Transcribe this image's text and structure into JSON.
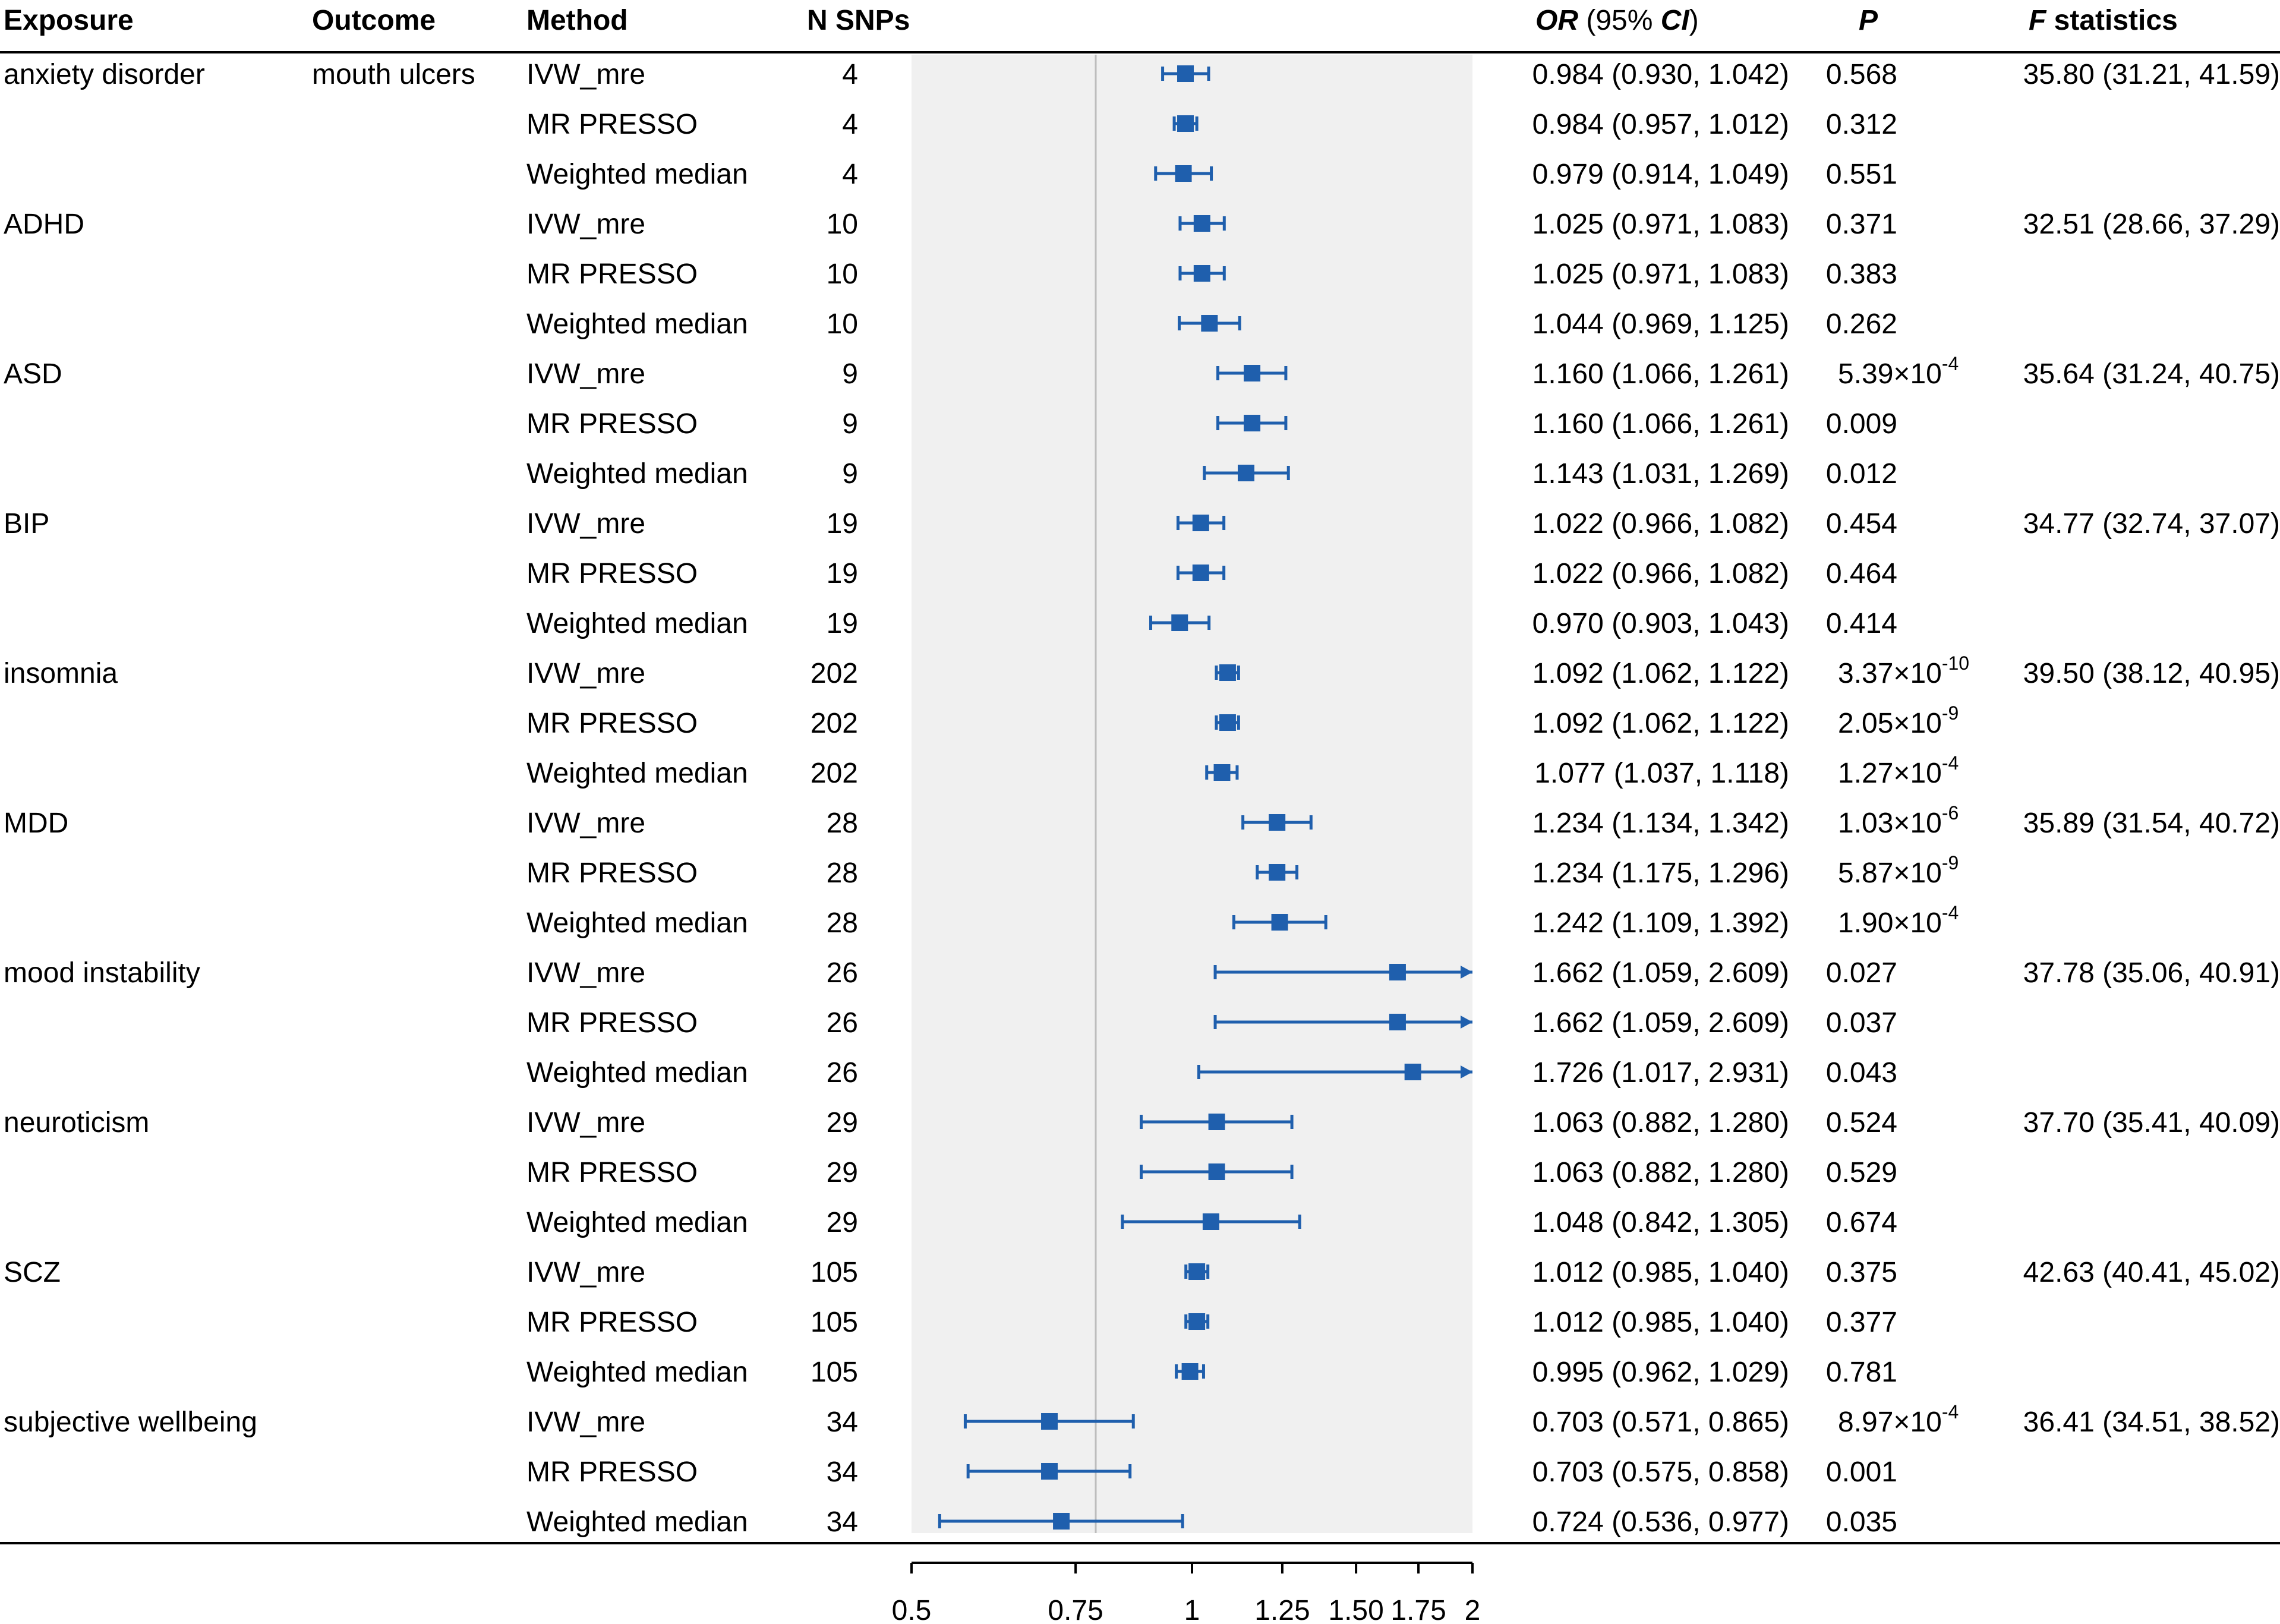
{
  "chart_data": {
    "type": "forest",
    "title": "",
    "xlabel": "",
    "ylabel": "",
    "x_scale": "log",
    "xlim": [
      0.5,
      2
    ],
    "reference_line": 1,
    "x_ticks": [
      0.5,
      0.75,
      1,
      1.25,
      1.5,
      1.75,
      2
    ],
    "x_tick_labels": [
      "0.5",
      "0.75",
      "1",
      "1.25",
      "1.50",
      "1.75",
      "2"
    ],
    "headers": {
      "exposure": "Exposure",
      "outcome": "Outcome",
      "method": "Method",
      "nsnps": "N SNPs",
      "or_ci_or": "OR",
      "or_ci_open": " (95% ",
      "or_ci_ci": "CI",
      "or_ci_close": ")",
      "p": "P",
      "f_f": "F",
      "f_rest": " statistics"
    },
    "colors": {
      "marker": "#1f5fad",
      "shade": "#f0f0f0",
      "refline": "#bdbdbd",
      "axis": "#000000"
    },
    "rows": [
      {
        "exposure": "anxiety disorder",
        "outcome": "mouth ulcers",
        "method": "IVW_mre",
        "nsnps": "4",
        "or": 0.984,
        "lo": 0.93,
        "hi": 1.042,
        "or_text": "0.984 (0.930, 1.042)",
        "p_text": "0.568",
        "p_mant": "",
        "p_exp": "",
        "f_text": "35.80 (31.21, 41.59)"
      },
      {
        "exposure": "",
        "outcome": "",
        "method": "MR PRESSO",
        "nsnps": "4",
        "or": 0.984,
        "lo": 0.957,
        "hi": 1.012,
        "or_text": "0.984 (0.957, 1.012)",
        "p_text": "0.312",
        "p_mant": "",
        "p_exp": "",
        "f_text": ""
      },
      {
        "exposure": "",
        "outcome": "",
        "method": "Weighted median",
        "nsnps": "4",
        "or": 0.979,
        "lo": 0.914,
        "hi": 1.049,
        "or_text": "0.979 (0.914, 1.049)",
        "p_text": "0.551",
        "p_mant": "",
        "p_exp": "",
        "f_text": ""
      },
      {
        "exposure": "ADHD",
        "outcome": "",
        "method": "IVW_mre",
        "nsnps": "10",
        "or": 1.025,
        "lo": 0.971,
        "hi": 1.083,
        "or_text": "1.025 (0.971, 1.083)",
        "p_text": "0.371",
        "p_mant": "",
        "p_exp": "",
        "f_text": "32.51 (28.66, 37.29)"
      },
      {
        "exposure": "",
        "outcome": "",
        "method": "MR PRESSO",
        "nsnps": "10",
        "or": 1.025,
        "lo": 0.971,
        "hi": 1.083,
        "or_text": "1.025 (0.971, 1.083)",
        "p_text": "0.383",
        "p_mant": "",
        "p_exp": "",
        "f_text": ""
      },
      {
        "exposure": "",
        "outcome": "",
        "method": "Weighted median",
        "nsnps": "10",
        "or": 1.044,
        "lo": 0.969,
        "hi": 1.125,
        "or_text": "1.044 (0.969, 1.125)",
        "p_text": "0.262",
        "p_mant": "",
        "p_exp": "",
        "f_text": ""
      },
      {
        "exposure": "ASD",
        "outcome": "",
        "method": "IVW_mre",
        "nsnps": "9",
        "or": 1.16,
        "lo": 1.066,
        "hi": 1.261,
        "or_text": "1.160 (1.066, 1.261)",
        "p_text": "",
        "p_mant": "5.39×10",
        "p_exp": "-4",
        "f_text": "35.64 (31.24, 40.75)"
      },
      {
        "exposure": "",
        "outcome": "",
        "method": "MR PRESSO",
        "nsnps": "9",
        "or": 1.16,
        "lo": 1.066,
        "hi": 1.261,
        "or_text": "1.160 (1.066, 1.261)",
        "p_text": "0.009",
        "p_mant": "",
        "p_exp": "",
        "f_text": ""
      },
      {
        "exposure": "",
        "outcome": "",
        "method": "Weighted median",
        "nsnps": "9",
        "or": 1.143,
        "lo": 1.031,
        "hi": 1.269,
        "or_text": "1.143 (1.031, 1.269)",
        "p_text": "0.012",
        "p_mant": "",
        "p_exp": "",
        "f_text": ""
      },
      {
        "exposure": "BIP",
        "outcome": "",
        "method": "IVW_mre",
        "nsnps": "19",
        "or": 1.022,
        "lo": 0.966,
        "hi": 1.082,
        "or_text": "1.022 (0.966, 1.082)",
        "p_text": "0.454",
        "p_mant": "",
        "p_exp": "",
        "f_text": "34.77 (32.74, 37.07)"
      },
      {
        "exposure": "",
        "outcome": "",
        "method": "MR PRESSO",
        "nsnps": "19",
        "or": 1.022,
        "lo": 0.966,
        "hi": 1.082,
        "or_text": "1.022 (0.966, 1.082)",
        "p_text": "0.464",
        "p_mant": "",
        "p_exp": "",
        "f_text": ""
      },
      {
        "exposure": "",
        "outcome": "",
        "method": "Weighted median",
        "nsnps": "19",
        "or": 0.97,
        "lo": 0.903,
        "hi": 1.043,
        "or_text": "0.970 (0.903, 1.043)",
        "p_text": "0.414",
        "p_mant": "",
        "p_exp": "",
        "f_text": ""
      },
      {
        "exposure": "insomnia",
        "outcome": "",
        "method": "IVW_mre",
        "nsnps": "202",
        "or": 1.092,
        "lo": 1.062,
        "hi": 1.122,
        "or_text": "1.092 (1.062, 1.122)",
        "p_text": "",
        "p_mant": "3.37×10",
        "p_exp": "-10",
        "f_text": "39.50 (38.12, 40.95)"
      },
      {
        "exposure": "",
        "outcome": "",
        "method": "MR PRESSO",
        "nsnps": "202",
        "or": 1.092,
        "lo": 1.062,
        "hi": 1.122,
        "or_text": "1.092 (1.062, 1.122)",
        "p_text": "",
        "p_mant": "2.05×10",
        "p_exp": "-9",
        "f_text": ""
      },
      {
        "exposure": "",
        "outcome": "",
        "method": "Weighted median",
        "nsnps": "202",
        "or": 1.077,
        "lo": 1.037,
        "hi": 1.118,
        "or_text": "1.077 (1.037, 1.118)",
        "p_text": "",
        "p_mant": "1.27×10",
        "p_exp": "-4",
        "f_text": ""
      },
      {
        "exposure": "MDD",
        "outcome": "",
        "method": "IVW_mre",
        "nsnps": "28",
        "or": 1.234,
        "lo": 1.134,
        "hi": 1.342,
        "or_text": "1.234 (1.134, 1.342)",
        "p_text": "",
        "p_mant": "1.03×10",
        "p_exp": "-6",
        "f_text": "35.89 (31.54, 40.72)"
      },
      {
        "exposure": "",
        "outcome": "",
        "method": "MR PRESSO",
        "nsnps": "28",
        "or": 1.234,
        "lo": 1.175,
        "hi": 1.296,
        "or_text": "1.234 (1.175, 1.296)",
        "p_text": "",
        "p_mant": "5.87×10",
        "p_exp": "-9",
        "f_text": ""
      },
      {
        "exposure": "",
        "outcome": "",
        "method": "Weighted median",
        "nsnps": "28",
        "or": 1.242,
        "lo": 1.109,
        "hi": 1.392,
        "or_text": "1.242 (1.109, 1.392)",
        "p_text": "",
        "p_mant": "1.90×10",
        "p_exp": "-4",
        "f_text": ""
      },
      {
        "exposure": "mood instability",
        "outcome": "",
        "method": "IVW_mre",
        "nsnps": "26",
        "or": 1.662,
        "lo": 1.059,
        "hi": 2.609,
        "or_text": "1.662 (1.059, 2.609)",
        "p_text": "0.027",
        "p_mant": "",
        "p_exp": "",
        "f_text": "37.78 (35.06, 40.91)"
      },
      {
        "exposure": "",
        "outcome": "",
        "method": "MR PRESSO",
        "nsnps": "26",
        "or": 1.662,
        "lo": 1.059,
        "hi": 2.609,
        "or_text": "1.662 (1.059, 2.609)",
        "p_text": "0.037",
        "p_mant": "",
        "p_exp": "",
        "f_text": ""
      },
      {
        "exposure": "",
        "outcome": "",
        "method": "Weighted median",
        "nsnps": "26",
        "or": 1.726,
        "lo": 1.017,
        "hi": 2.931,
        "or_text": "1.726 (1.017, 2.931)",
        "p_text": "0.043",
        "p_mant": "",
        "p_exp": "",
        "f_text": ""
      },
      {
        "exposure": "neuroticism",
        "outcome": "",
        "method": "IVW_mre",
        "nsnps": "29",
        "or": 1.063,
        "lo": 0.882,
        "hi": 1.28,
        "or_text": "1.063 (0.882, 1.280)",
        "p_text": "0.524",
        "p_mant": "",
        "p_exp": "",
        "f_text": "37.70 (35.41, 40.09)"
      },
      {
        "exposure": "",
        "outcome": "",
        "method": "MR PRESSO",
        "nsnps": "29",
        "or": 1.063,
        "lo": 0.882,
        "hi": 1.28,
        "or_text": "1.063 (0.882, 1.280)",
        "p_text": "0.529",
        "p_mant": "",
        "p_exp": "",
        "f_text": ""
      },
      {
        "exposure": "",
        "outcome": "",
        "method": "Weighted median",
        "nsnps": "29",
        "or": 1.048,
        "lo": 0.842,
        "hi": 1.305,
        "or_text": "1.048 (0.842, 1.305)",
        "p_text": "0.674",
        "p_mant": "",
        "p_exp": "",
        "f_text": ""
      },
      {
        "exposure": "SCZ",
        "outcome": "",
        "method": "IVW_mre",
        "nsnps": "105",
        "or": 1.012,
        "lo": 0.985,
        "hi": 1.04,
        "or_text": "1.012 (0.985, 1.040)",
        "p_text": "0.375",
        "p_mant": "",
        "p_exp": "",
        "f_text": "42.63 (40.41, 45.02)"
      },
      {
        "exposure": "",
        "outcome": "",
        "method": "MR PRESSO",
        "nsnps": "105",
        "or": 1.012,
        "lo": 0.985,
        "hi": 1.04,
        "or_text": "1.012 (0.985, 1.040)",
        "p_text": "0.377",
        "p_mant": "",
        "p_exp": "",
        "f_text": ""
      },
      {
        "exposure": "",
        "outcome": "",
        "method": "Weighted median",
        "nsnps": "105",
        "or": 0.995,
        "lo": 0.962,
        "hi": 1.029,
        "or_text": "0.995 (0.962, 1.029)",
        "p_text": "0.781",
        "p_mant": "",
        "p_exp": "",
        "f_text": ""
      },
      {
        "exposure": "subjective wellbeing",
        "outcome": "",
        "method": "IVW_mre",
        "nsnps": "34",
        "or": 0.703,
        "lo": 0.571,
        "hi": 0.865,
        "or_text": "0.703 (0.571, 0.865)",
        "p_text": "",
        "p_mant": "8.97×10",
        "p_exp": "-4",
        "f_text": "36.41 (34.51, 38.52)"
      },
      {
        "exposure": "",
        "outcome": "",
        "method": "MR PRESSO",
        "nsnps": "34",
        "or": 0.703,
        "lo": 0.575,
        "hi": 0.858,
        "or_text": "0.703 (0.575, 0.858)",
        "p_text": "0.001",
        "p_mant": "",
        "p_exp": "",
        "f_text": ""
      },
      {
        "exposure": "",
        "outcome": "",
        "method": "Weighted median",
        "nsnps": "34",
        "or": 0.724,
        "lo": 0.536,
        "hi": 0.977,
        "or_text": "0.724 (0.536, 0.977)",
        "p_text": "0.035",
        "p_mant": "",
        "p_exp": "",
        "f_text": ""
      }
    ]
  }
}
